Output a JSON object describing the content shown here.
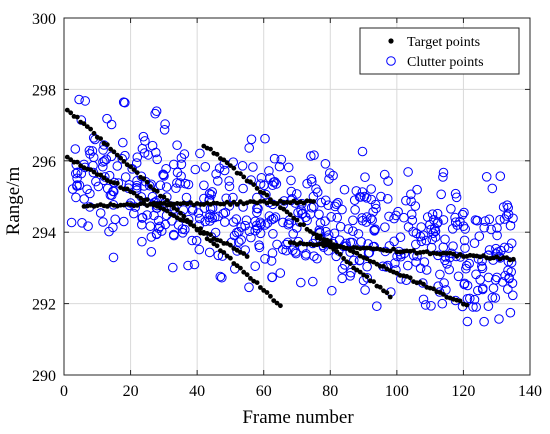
{
  "chart_data": {
    "type": "scatter",
    "xlabel": "Frame number",
    "ylabel": "Range/m",
    "xlim": [
      0,
      140
    ],
    "ylim": [
      290,
      300
    ],
    "xticks": [
      0,
      20,
      40,
      60,
      80,
      100,
      120,
      140
    ],
    "yticks": [
      290,
      292,
      294,
      296,
      298,
      300
    ],
    "grid": true,
    "legend_position": "top-right",
    "series": [
      {
        "name": "Target points",
        "marker": "filled-dot",
        "color": "#000000",
        "tracks": [
          {
            "x_start": 1,
            "x_end": 65,
            "y_start": 297.45,
            "y_end": 291.95
          },
          {
            "x_start": 1,
            "x_end": 55,
            "y_start": 296.1,
            "y_end": 293.35
          },
          {
            "x_start": 6,
            "x_end": 75,
            "y_start": 294.75,
            "y_end": 294.85
          },
          {
            "x_start": 42,
            "x_end": 98,
            "y_start": 296.45,
            "y_end": 292.2
          },
          {
            "x_start": 68,
            "x_end": 135,
            "y_start": 293.7,
            "y_end": 293.25
          },
          {
            "x_start": 76,
            "x_end": 121,
            "y_start": 293.9,
            "y_end": 291.95
          }
        ]
      },
      {
        "name": "Clutter points",
        "marker": "open-circle",
        "color": "#0000ff",
        "count": 600,
        "y_center_start": 295.6,
        "y_center_end": 293.3,
        "spread": 1.6
      }
    ]
  },
  "legend": {
    "target_label": "Target points",
    "clutter_label": "Clutter points"
  },
  "colors": {
    "target": "#000000",
    "clutter": "#0000ff",
    "axes": "#262626",
    "grid": "#d9d9d9"
  }
}
